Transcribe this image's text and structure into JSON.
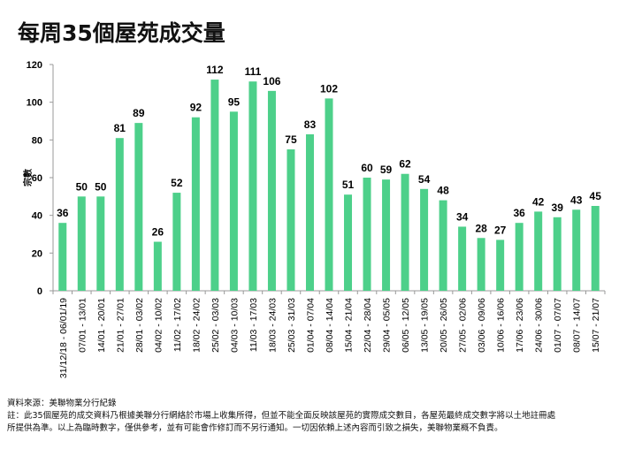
{
  "chart_data": {
    "type": "bar",
    "title": "每周35個屋苑成交量",
    "ylabel": "宗數",
    "xlabel": "",
    "ylim": [
      0,
      120
    ],
    "yticks": [
      0,
      20,
      40,
      60,
      80,
      100,
      120
    ],
    "bar_color": "#4dd08a",
    "categories": [
      "31/12/18 - 06/01/19",
      "07/01 - 13/01",
      "14/01 - 20/01",
      "21/01 - 27/01",
      "28/01 - 03/02",
      "04/02 - 10/02",
      "11/02 - 17/02",
      "18/02 - 24/02",
      "25/02 - 03/03",
      "04/03 - 10/03",
      "11/03 - 17/03",
      "18/03 - 24/03",
      "25/03 - 31/03",
      "01/04 - 07/04",
      "08/04 - 14/04",
      "15/04 - 21/04",
      "22/04 - 28/04",
      "29/04 - 05/05",
      "06/05 - 12/05",
      "13/05 - 19/05",
      "20/05 - 26/05",
      "27/05 - 02/06",
      "03/06 - 09/06",
      "10/06 - 16/06",
      "17/06 - 23/06",
      "24/06 - 30/06",
      "01/07 - 07/07",
      "08/07 - 14/07",
      "15/07 - 21/07"
    ],
    "values": [
      36,
      50,
      50,
      81,
      89,
      26,
      52,
      92,
      112,
      95,
      111,
      106,
      75,
      83,
      102,
      51,
      60,
      59,
      62,
      54,
      48,
      34,
      28,
      27,
      36,
      42,
      39,
      43,
      45
    ]
  },
  "notes": {
    "source": "資料來源：美聯物業分行紀錄",
    "line1": "註：此35個屋苑的成交資料乃根據美聯分行網絡於市場上收集所得，但並不能全面反映該屋苑的實際成交數目，各屋苑最終成交數字將以土地註冊處",
    "line2": "所提供為準。以上為臨時數字，僅供參考，並有可能會作修訂而不另行通知。一切因依賴上述內容而引致之損失，美聯物業概不負責。"
  }
}
